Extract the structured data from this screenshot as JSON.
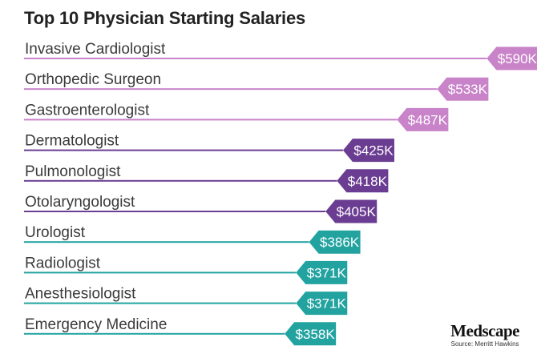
{
  "chart_data": {
    "type": "bar",
    "orientation": "horizontal",
    "title": "Top 10 Physician Starting Salaries",
    "categories": [
      "Invasive Cardiologist",
      "Orthopedic Surgeon",
      "Gastroenterologist",
      "Dermatologist",
      "Pulmonologist",
      "Otolaryngologist",
      "Urologist",
      "Radiologist",
      "Anesthesiologist",
      "Emergency Medicine"
    ],
    "values": [
      590,
      533,
      487,
      425,
      418,
      405,
      386,
      371,
      371,
      358
    ],
    "value_labels": [
      "$590K",
      "$533K",
      "$487K",
      "$425K",
      "$418K",
      "$405K",
      "$386K",
      "$371K",
      "$371K",
      "$358K"
    ],
    "unit": "thousand USD",
    "groups": [
      0,
      0,
      0,
      1,
      1,
      1,
      2,
      2,
      2,
      2
    ],
    "group_colors": [
      "#c983c9",
      "#6b3d92",
      "#22a3a0"
    ],
    "xlabel": "",
    "ylabel": ""
  },
  "branding": {
    "logo_text": "Medscape",
    "source": "Source: Merritt Hawkins"
  }
}
